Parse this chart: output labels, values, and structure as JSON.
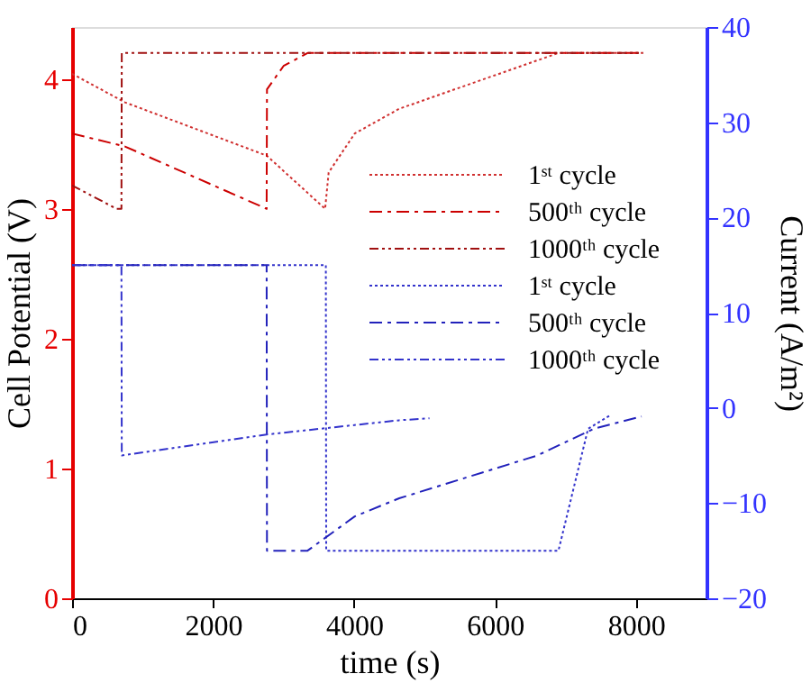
{
  "chart_data": {
    "type": "line",
    "xlabel": "time (s)",
    "ylabel": "Cell Potential (V)",
    "y2label": "Current (A/m²)",
    "xlim": [
      0,
      9000
    ],
    "xticks": [
      0,
      2000,
      4000,
      6000,
      8000
    ],
    "ylim": [
      0,
      4.4
    ],
    "yticks": [
      0,
      1,
      2,
      3,
      4
    ],
    "y2lim": [
      -20,
      40
    ],
    "y2ticks": [
      -20,
      -10,
      0,
      10,
      20,
      30,
      40
    ],
    "grid": false,
    "legend": "right",
    "marker": "none",
    "series": [
      {
        "name": "1ˢᵗ cycle",
        "color": "#d03030",
        "line_style": "dotted",
        "axis": "y",
        "x": [
          0,
          750,
          2760,
          3590,
          3640,
          4010,
          4640,
          6900,
          8100
        ],
        "values": [
          4.04,
          3.82,
          3.41,
          3.0,
          3.28,
          3.58,
          3.77,
          4.2,
          4.2
        ]
      },
      {
        "name": "500ᵗʰ cycle",
        "color": "#cc0000",
        "line_style": "dashdot",
        "axis": "y",
        "x": [
          0,
          750,
          2760,
          2765,
          3000,
          3340,
          8100
        ],
        "values": [
          3.58,
          3.48,
          3.0,
          3.92,
          4.1,
          4.2,
          4.2
        ]
      },
      {
        "name": "1000ᵗʰ cycle",
        "color": "#a01010",
        "line_style": "dashdotdot",
        "axis": "y",
        "x": [
          0,
          630,
          700,
          705,
          8100
        ],
        "values": [
          3.18,
          3.0,
          3.0,
          4.2,
          4.2
        ]
      },
      {
        "name": "1ˢᵗ cycle",
        "color": "#3333cc",
        "line_style": "dotted",
        "axis": "y2",
        "x": [
          0,
          3600,
          3605,
          6900,
          7320,
          7650
        ],
        "values": [
          15,
          15,
          -15,
          -15,
          -2.2,
          -0.7
        ]
      },
      {
        "name": "500ᵗʰ cycle",
        "color": "#2222bb",
        "line_style": "dashdot",
        "axis": "y2",
        "x": [
          0,
          2760,
          2765,
          3340,
          4010,
          4640,
          6600,
          7400,
          8080
        ],
        "values": [
          15,
          15,
          -15,
          -15,
          -11.4,
          -9.5,
          -5,
          -2.2,
          -0.9
        ]
      },
      {
        "name": "1000ᵗʰ cycle",
        "color": "#3333cc",
        "line_style": "dashdotdot",
        "axis": "y2",
        "x": [
          0,
          700,
          705,
          2760,
          4640,
          5070
        ],
        "values": [
          15,
          15,
          -5,
          -2.8,
          -1.3,
          -1.1
        ]
      }
    ]
  }
}
